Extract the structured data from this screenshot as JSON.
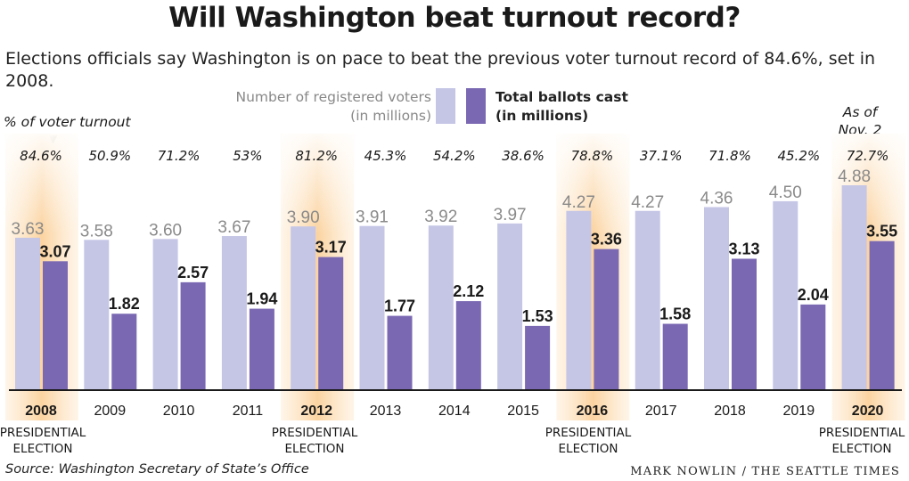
{
  "header": {
    "title": "Will Washington beat turnout record?",
    "subtitle": "Elections officials say Washington is on pace to beat the previous voter turnout record of 84.6%, set in 2008."
  },
  "legend": {
    "registered_line1": "Number of registered voters",
    "registered_line2": "(in millions)",
    "ballots_line1": "Total ballots cast",
    "ballots_line2": "(in millions)"
  },
  "turnout_label": "% of voter turnout",
  "as_of_line1": "As of",
  "as_of_line2": "Nov. 2",
  "presidential_line1": "PRESIDENTIAL",
  "presidential_line2": "ELECTION",
  "footer": {
    "source": "Source: Washington Secretary of State’s Office",
    "credit": "MARK NOWLIN / THE SEATTLE TIMES"
  },
  "colors": {
    "registered": "#c5c6e6",
    "ballots": "#7a68b3",
    "highlight": "#fbd9a8",
    "registered_label": "#8a8a8a"
  },
  "chart_data": {
    "type": "bar",
    "categories": [
      "2008",
      "2009",
      "2010",
      "2011",
      "2012",
      "2013",
      "2014",
      "2015",
      "2016",
      "2017",
      "2018",
      "2019",
      "2020"
    ],
    "series": [
      {
        "name": "Number of registered voters (in millions)",
        "values": [
          3.63,
          3.58,
          3.6,
          3.67,
          3.9,
          3.91,
          3.92,
          3.97,
          4.27,
          4.27,
          4.36,
          4.5,
          4.88
        ]
      },
      {
        "name": "Total ballots cast (in millions)",
        "values": [
          3.07,
          1.82,
          2.57,
          1.94,
          3.17,
          1.77,
          2.12,
          1.53,
          3.36,
          1.58,
          3.13,
          2.04,
          3.55
        ]
      }
    ],
    "turnout": [
      "84.6%",
      "50.9%",
      "71.2%",
      "53%",
      "81.2%",
      "45.3%",
      "54.2%",
      "38.6%",
      "78.8%",
      "37.1%",
      "71.8%",
      "45.2%",
      "72.7%"
    ],
    "presidential_years": [
      "2008",
      "2012",
      "2016",
      "2020"
    ],
    "ylim": [
      0,
      5.1
    ]
  }
}
